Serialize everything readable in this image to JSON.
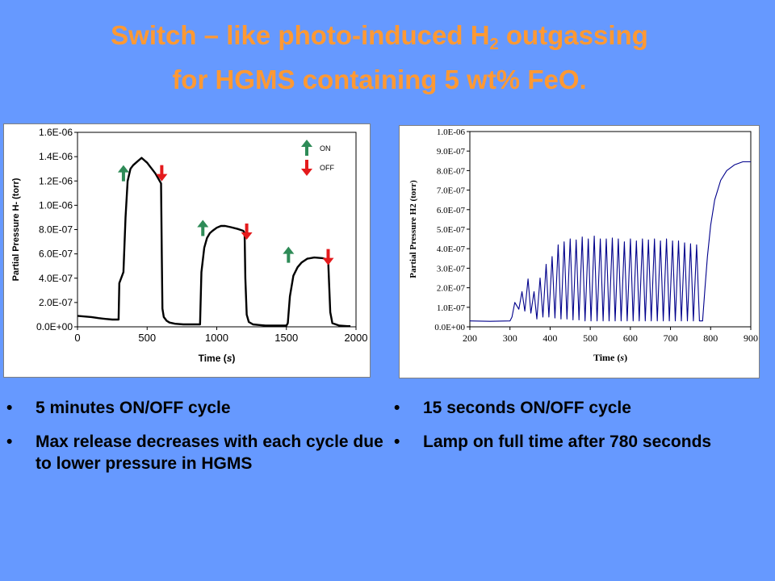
{
  "slide": {
    "title_line1_main": "Switch – like photo-induced H",
    "title_line1_sub": "2",
    "title_line1_end": " outgassing",
    "title_line2": "for HGMS containing 5 wt% FeO.",
    "colors": {
      "background": "#6699FF",
      "title": "#FF9933",
      "on_arrow": "#2E8B57",
      "off_arrow": "#E41A1C",
      "right_trace": "#00008B"
    },
    "bullet_glyph": "•",
    "bullets_left": [
      "5 minutes ON/OFF cycle",
      "Max release decreases with each cycle due to lower pressure in HGMS"
    ],
    "bullets_right": [
      "15 seconds ON/OFF cycle",
      "Lamp on full time after 780 seconds"
    ]
  },
  "chart_data": [
    {
      "type": "line",
      "xlabel_main": "Time (",
      "xlabel_var": "s",
      "xlabel_end": ")",
      "ylabel": "Partial Pressure H- (torr)",
      "xlim": [
        0,
        2000
      ],
      "ylim": [
        0,
        1.6e-06
      ],
      "x_ticks": [
        0,
        500,
        1000,
        1500,
        2000
      ],
      "x_tick_labels": [
        "0",
        "500",
        "1000",
        "1500",
        "2000"
      ],
      "y_ticks": [
        0,
        2e-07,
        4e-07,
        6e-07,
        8e-07,
        1e-06,
        1.2e-06,
        1.4e-06,
        1.6e-06
      ],
      "y_tick_labels": [
        "0.0E+00",
        "2.0E-07",
        "4.0E-07",
        "6.0E-07",
        "8.0E-07",
        "1.0E-06",
        "1.2E-06",
        "1.4E-06",
        "1.6E-06"
      ],
      "grid": false,
      "legend": {
        "position": "top-right",
        "on_label": "ON",
        "off_label": "OFF"
      },
      "markers": [
        {
          "kind": "on",
          "x": 330,
          "y": 1.33e-06
        },
        {
          "kind": "off",
          "x": 605,
          "y": 1.33e-06
        },
        {
          "kind": "on",
          "x": 900,
          "y": 8.8e-07
        },
        {
          "kind": "off",
          "x": 1215,
          "y": 8.5e-07
        },
        {
          "kind": "on",
          "x": 1515,
          "y": 6.6e-07
        },
        {
          "kind": "off",
          "x": 1800,
          "y": 6.4e-07
        }
      ],
      "series": [
        {
          "x": [
            0,
            50,
            100,
            150,
            200,
            250,
            295,
            300,
            310,
            330,
            345,
            360,
            380,
            400,
            420,
            440,
            460,
            480,
            500,
            520,
            540,
            560,
            590,
            600,
            605,
            610,
            620,
            640,
            660,
            700,
            760,
            820,
            870,
            880,
            890,
            910,
            930,
            950,
            970,
            1000,
            1030,
            1060,
            1100,
            1150,
            1190,
            1200,
            1205,
            1215,
            1230,
            1260,
            1300,
            1350,
            1400,
            1450,
            1500,
            1510,
            1525,
            1550,
            1580,
            1610,
            1650,
            1700,
            1760,
            1790,
            1800,
            1805,
            1815,
            1830,
            1880,
            1940,
            1960
          ],
          "y": [
            9e-08,
            8.5e-08,
            8e-08,
            7.2e-08,
            6.5e-08,
            6e-08,
            6e-08,
            3.6e-07,
            3.9e-07,
            4.5e-07,
            9e-07,
            1.2e-06,
            1.3e-06,
            1.33e-06,
            1.35e-06,
            1.37e-06,
            1.39e-06,
            1.37e-06,
            1.35e-06,
            1.32e-06,
            1.29e-06,
            1.26e-06,
            1.2e-06,
            1.18e-06,
            6e-07,
            1.5e-07,
            8e-08,
            5e-08,
            3.5e-08,
            2.5e-08,
            2e-08,
            2e-08,
            2e-08,
            2e-08,
            4.5e-07,
            6.5e-07,
            7.3e-07,
            7.7e-07,
            7.9e-07,
            8.15e-07,
            8.3e-07,
            8.3e-07,
            8.2e-07,
            8.05e-07,
            7.9e-07,
            7.7e-07,
            4e-07,
            1e-07,
            4e-08,
            2e-08,
            1.5e-08,
            1e-08,
            1e-08,
            1e-08,
            1e-08,
            3e-08,
            2.5e-07,
            4.2e-07,
            4.9e-07,
            5.3e-07,
            5.6e-07,
            5.7e-07,
            5.65e-07,
            5.55e-07,
            5.5e-07,
            4e-07,
            1.2e-07,
            3e-08,
            1e-08,
            5e-09,
            5e-09
          ]
        }
      ]
    },
    {
      "type": "line",
      "xlabel_main": "Time (",
      "xlabel_var": "s",
      "xlabel_end": ")",
      "ylabel": "Partial Pressure H2 (torr)",
      "xlim": [
        200,
        900
      ],
      "ylim": [
        0,
        1e-06
      ],
      "x_ticks": [
        200,
        300,
        400,
        500,
        600,
        700,
        800,
        900
      ],
      "x_tick_labels": [
        "200",
        "300",
        "400",
        "500",
        "600",
        "700",
        "800",
        "900"
      ],
      "y_ticks": [
        0,
        1e-07,
        2e-07,
        3e-07,
        4e-07,
        5e-07,
        6e-07,
        7e-07,
        8e-07,
        9e-07,
        1e-06
      ],
      "y_tick_labels": [
        "0.0E+00",
        "1.0E-07",
        "2.0E-07",
        "3.0E-07",
        "4.0E-07",
        "5.0E-07",
        "6.0E-07",
        "7.0E-07",
        "8.0E-07",
        "9.0E-07",
        "1.0E-06"
      ],
      "grid": false,
      "series": [
        {
          "x": [
            200,
            250,
            300,
            305,
            312,
            322,
            330,
            337,
            345,
            352,
            360,
            367,
            375,
            382,
            390,
            397,
            405,
            412,
            420,
            427,
            435,
            442,
            450,
            457,
            465,
            472,
            480,
            487,
            495,
            502,
            510,
            517,
            525,
            532,
            540,
            547,
            555,
            562,
            570,
            577,
            585,
            592,
            600,
            607,
            615,
            622,
            630,
            637,
            645,
            652,
            660,
            667,
            675,
            682,
            690,
            697,
            705,
            712,
            720,
            727,
            735,
            742,
            750,
            757,
            765,
            772,
            780,
            786,
            792,
            800,
            810,
            825,
            840,
            860,
            880,
            900
          ],
          "y": [
            3e-08,
            2.8e-08,
            3e-08,
            5e-08,
            1.25e-07,
            9e-08,
            1.8e-07,
            8e-08,
            2.45e-07,
            7e-08,
            1.8e-07,
            4e-08,
            2.5e-07,
            5e-08,
            3.2e-07,
            5e-08,
            3.6e-07,
            4.5e-08,
            4.2e-07,
            4e-08,
            4.35e-07,
            4e-08,
            4.5e-07,
            3.5e-08,
            4.45e-07,
            3.5e-08,
            4.6e-07,
            3e-08,
            4.5e-07,
            3e-08,
            4.65e-07,
            3e-08,
            4.5e-07,
            3e-08,
            4.5e-07,
            3e-08,
            4.55e-07,
            3e-08,
            4.5e-07,
            3e-08,
            4.35e-07,
            3e-08,
            4.5e-07,
            3e-08,
            4.4e-07,
            3e-08,
            4.5e-07,
            3e-08,
            4.45e-07,
            3e-08,
            4.5e-07,
            3e-08,
            4.4e-07,
            3e-08,
            4.5e-07,
            3e-08,
            4.4e-07,
            3e-08,
            4.4e-07,
            3e-08,
            4.3e-07,
            3e-08,
            4.25e-07,
            3e-08,
            4.2e-07,
            3e-08,
            3e-08,
            2e-07,
            3.6e-07,
            5.2e-07,
            6.5e-07,
            7.5e-07,
            8e-07,
            8.3e-07,
            8.45e-07,
            8.45e-07
          ]
        }
      ]
    }
  ]
}
